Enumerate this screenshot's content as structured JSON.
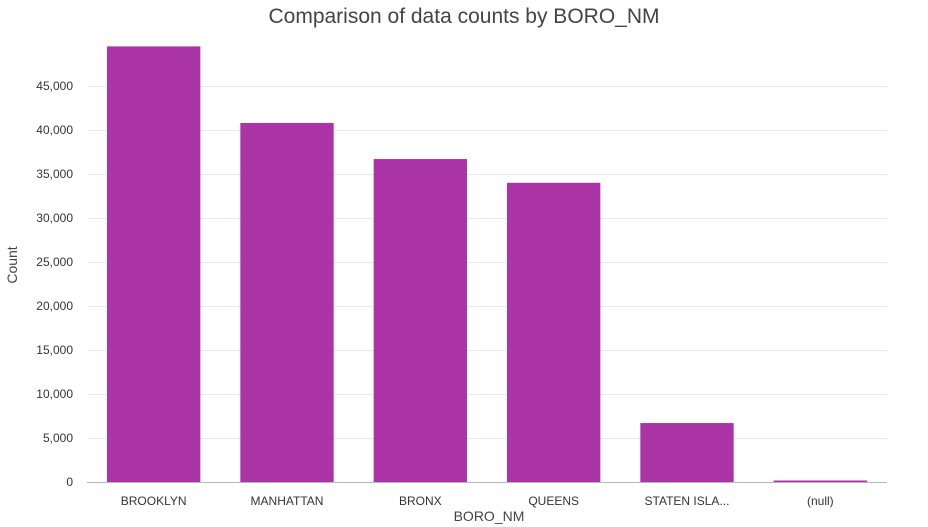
{
  "chart_data": {
    "type": "bar",
    "title": "Comparison of data counts by BORO_NM",
    "xlabel": "BORO_NM",
    "ylabel": "Count",
    "categories": [
      "BROOKLYN",
      "MANHATTAN",
      "BRONX",
      "QUEENS",
      "STATEN ISLA...",
      "(null)"
    ],
    "values": [
      49500,
      40800,
      36700,
      34000,
      6700,
      150
    ],
    "ylim": [
      0,
      50000
    ],
    "yticks": [
      0,
      5000,
      10000,
      15000,
      20000,
      25000,
      30000,
      35000,
      40000,
      45000
    ],
    "ytick_labels": [
      "0",
      "5,000",
      "10,000",
      "15,000",
      "20,000",
      "25,000",
      "30,000",
      "35,000",
      "40,000",
      "45,000"
    ],
    "grid": true,
    "legend": "none",
    "colors": {
      "bar": "#ab34a6",
      "grid": "#e9e9e9",
      "axis": "#b8b8b8",
      "text": "#444444"
    }
  }
}
